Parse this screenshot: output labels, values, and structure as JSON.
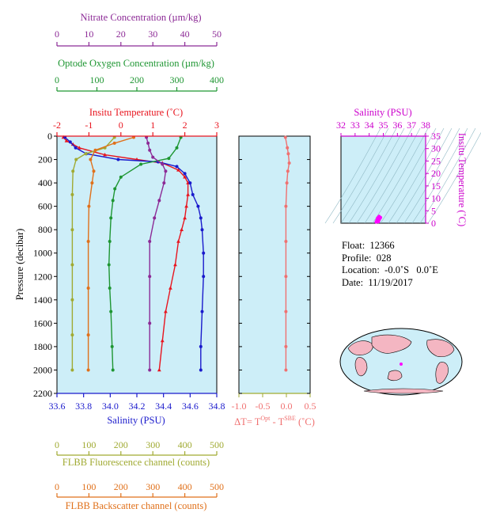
{
  "colors": {
    "panel_bg": "#cdeef8",
    "temperature": "#e8141e",
    "salinity": "#1a1acc",
    "oxygen": "#1e9632",
    "nitrate": "#8c2a96",
    "fluorescence": "#a0aa32",
    "backscatter": "#e0701a",
    "delta_t": "#f07070",
    "ts_axis": "#cc00cc"
  },
  "float_info": {
    "float_label": "Float:",
    "float_value": "12366",
    "profile_label": "Profile:",
    "profile_value": "028",
    "location_label": "Location:",
    "location_value": "-0.0˚S   0.0˚E",
    "date_label": "Date:",
    "date_value": "11/19/2017"
  },
  "chart_data": [
    {
      "type": "line",
      "name": "profile",
      "y_axis": {
        "label": "Pressure (decibar)",
        "range": [
          0,
          2200
        ],
        "ticks": [
          0,
          200,
          400,
          600,
          800,
          1000,
          1200,
          1400,
          1600,
          1800,
          2000,
          2200
        ]
      },
      "axes": {
        "temperature": {
          "label": "Insitu Temperature (˚C)",
          "range": [
            -2,
            3
          ],
          "ticks": [
            -2,
            -1,
            0,
            1,
            2,
            3
          ]
        },
        "salinity": {
          "label": "Salinity (PSU)",
          "range": [
            33.6,
            34.8
          ],
          "ticks": [
            "33.6",
            "33.8",
            "34.0",
            "34.2",
            "34.4",
            "34.6",
            "34.8"
          ]
        },
        "oxygen": {
          "label": "Optode Oxygen Concentration (µm/kg)",
          "range": [
            0,
            400
          ],
          "ticks": [
            0,
            100,
            200,
            300,
            400
          ]
        },
        "nitrate": {
          "label": "Nitrate Concentration (µm/kg)",
          "range": [
            0,
            50
          ],
          "ticks": [
            0,
            10,
            20,
            30,
            40,
            50
          ]
        },
        "fluorescence": {
          "label": "FLBB Fluorescence channel (counts)",
          "range": [
            0,
            500
          ],
          "ticks": [
            0,
            100,
            200,
            300,
            400,
            500
          ]
        },
        "backscatter": {
          "label": "FLBB Backscatter channel (counts)",
          "range": [
            0,
            500
          ],
          "ticks": [
            0,
            100,
            200,
            300,
            400,
            500
          ]
        }
      },
      "series": [
        {
          "key": "temperature",
          "axis": "temperature",
          "x": [
            -1.8,
            -1.7,
            -1.5,
            -1.3,
            -0.5,
            0.5,
            1.3,
            1.8,
            2.0,
            2.1,
            2.1,
            2.05,
            2.0,
            1.9,
            1.8,
            1.7,
            1.55,
            1.4,
            1.3,
            1.2
          ],
          "y": [
            10,
            40,
            70,
            100,
            160,
            200,
            230,
            290,
            350,
            400,
            500,
            600,
            700,
            800,
            900,
            1100,
            1300,
            1500,
            1750,
            2000
          ]
        },
        {
          "key": "salinity",
          "axis": "salinity",
          "x": [
            33.66,
            33.7,
            33.74,
            33.82,
            34.06,
            34.36,
            34.5,
            34.56,
            34.6,
            34.62,
            34.66,
            34.68,
            34.69,
            34.7,
            34.7,
            34.69,
            34.68,
            34.68
          ],
          "y": [
            10,
            50,
            100,
            150,
            200,
            220,
            260,
            320,
            400,
            500,
            600,
            700,
            800,
            1000,
            1200,
            1500,
            1800,
            2000
          ]
        },
        {
          "key": "oxygen",
          "axis": "oxygen",
          "x": [
            310,
            300,
            280,
            210,
            160,
            145,
            140,
            135,
            132,
            130,
            132,
            135,
            138,
            140
          ],
          "y": [
            10,
            100,
            190,
            240,
            350,
            450,
            550,
            700,
            900,
            1100,
            1300,
            1500,
            1800,
            2000
          ]
        },
        {
          "key": "nitrate",
          "axis": "nitrate",
          "x": [
            28,
            28.5,
            29,
            30,
            33,
            34,
            33.5,
            32,
            30.5,
            29,
            29,
            29,
            29
          ],
          "y": [
            10,
            60,
            120,
            180,
            240,
            300,
            400,
            550,
            700,
            900,
            1200,
            1600,
            2000
          ]
        },
        {
          "key": "fluorescence",
          "axis": "fluorescence",
          "x": [
            180,
            150,
            90,
            60,
            50,
            48,
            48,
            48,
            48,
            48,
            48
          ],
          "y": [
            10,
            100,
            150,
            200,
            300,
            500,
            800,
            1100,
            1400,
            1700,
            2000
          ]
        },
        {
          "key": "backscatter",
          "axis": "backscatter",
          "x": [
            240,
            180,
            120,
            105,
            115,
            110,
            100,
            98,
            98,
            98,
            98
          ],
          "y": [
            10,
            60,
            120,
            200,
            300,
            400,
            600,
            900,
            1300,
            1700,
            2000
          ]
        }
      ]
    },
    {
      "type": "line",
      "name": "delta_t",
      "x_axis": {
        "label": "ΔT= T",
        "sup1": "Opt",
        "label_mid": " - T",
        "sup2": "SBE",
        "label_end": " (˚C)",
        "range": [
          -1.0,
          0.5
        ],
        "ticks": [
          "-1.0",
          "-0.5",
          "0.0",
          "0.5"
        ]
      },
      "series": [
        {
          "x": [
            -0.02,
            0.02,
            0.04,
            0.06,
            0.03,
            0.01,
            -0.01,
            -0.01,
            -0.01,
            -0.01,
            -0.01,
            -0.01
          ],
          "y": [
            10,
            100,
            150,
            230,
            300,
            400,
            600,
            900,
            1200,
            1500,
            1800,
            2000
          ]
        }
      ]
    },
    {
      "type": "scatter",
      "name": "ts_diagram",
      "x_axis": {
        "label": "Salinity (PSU)",
        "range": [
          32,
          38
        ],
        "ticks": [
          32,
          33,
          34,
          35,
          36,
          37,
          38
        ]
      },
      "y_axis": {
        "label": "Insitu Temperature (˚C)",
        "range": [
          0,
          35
        ],
        "ticks": [
          0,
          5,
          10,
          15,
          20,
          25,
          30,
          35
        ]
      },
      "points": [
        {
          "x": 34.5,
          "y": 0.5
        },
        {
          "x": 34.6,
          "y": 0.9
        },
        {
          "x": 34.7,
          "y": 1.4
        },
        {
          "x": 34.75,
          "y": 1.9
        },
        {
          "x": 34.8,
          "y": 2.3
        },
        {
          "x": 34.7,
          "y": 2.7
        },
        {
          "x": 34.6,
          "y": 2.1
        },
        {
          "x": 34.55,
          "y": 1.2
        },
        {
          "x": 34.65,
          "y": 0.6
        }
      ]
    }
  ]
}
